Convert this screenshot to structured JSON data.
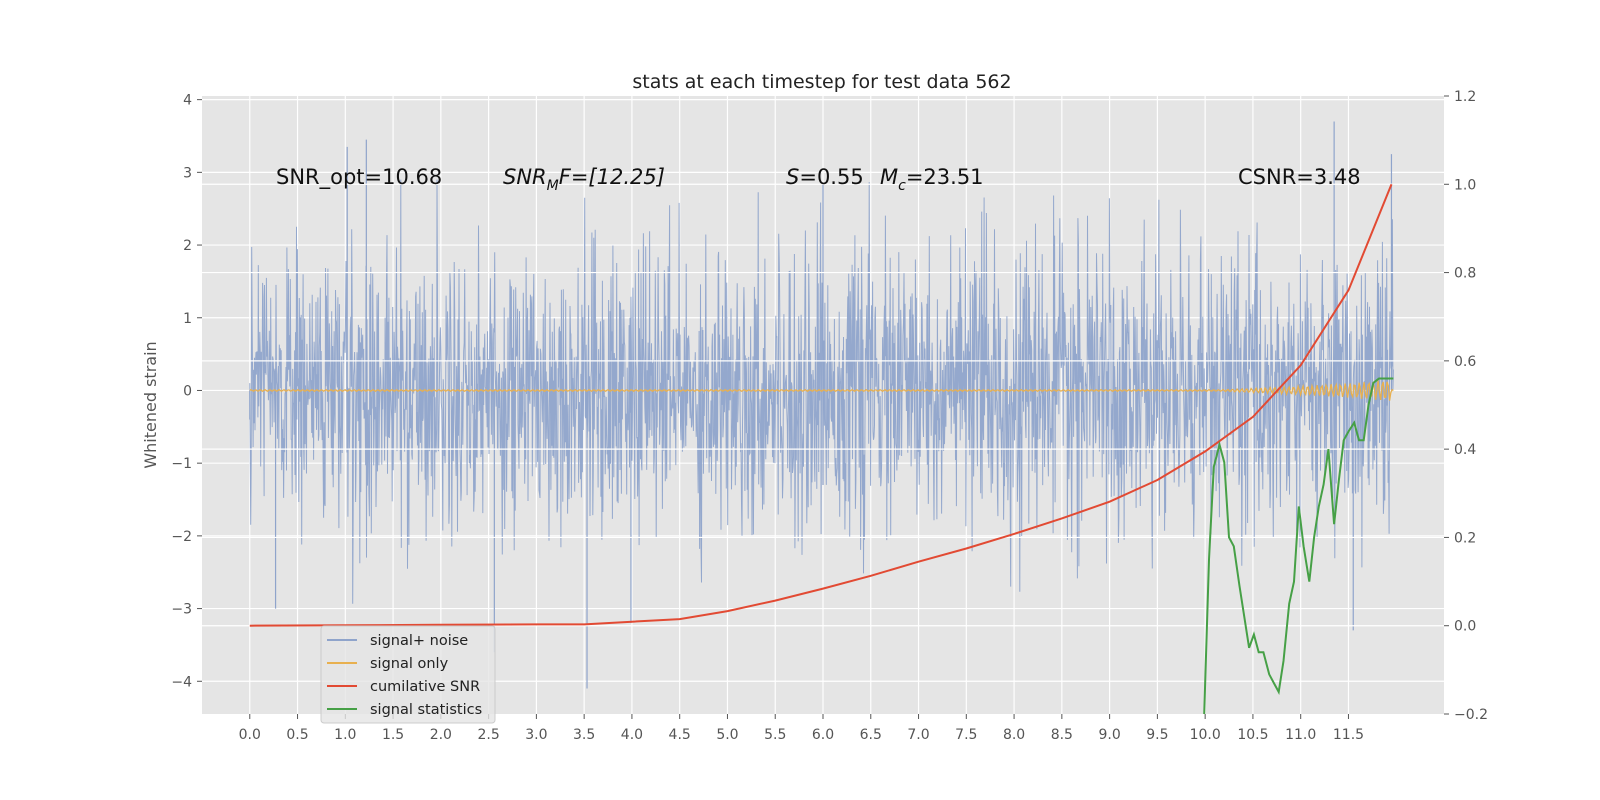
{
  "chart_data": {
    "type": "line",
    "title": "stats at each timestep for test data 562",
    "ylabel": "Whitened strain",
    "ylabel_right": "",
    "xlim": [
      -0.5,
      12.5
    ],
    "ylim": [
      -4.45,
      4.05
    ],
    "ylim_right": [
      -0.2,
      1.2
    ],
    "x_ticks": [
      0,
      0.5,
      1,
      1.5,
      2,
      2.5,
      3,
      3.5,
      4,
      4.5,
      5,
      5.5,
      6,
      6.5,
      7,
      7.5,
      8,
      8.5,
      9,
      9.5,
      10,
      10.5,
      11,
      11.5
    ],
    "x_tick_labels": [
      "0.0",
      "0.5",
      "1.0",
      "1.5",
      "2.0",
      "2.5",
      "3.0",
      "3.5",
      "4.0",
      "4.5",
      "5.0",
      "5.5",
      "6.0",
      "6.5",
      "7.0",
      "7.5",
      "8.0",
      "8.5",
      "9.0",
      "9.5",
      "10.0",
      "10.5",
      "11.0",
      "11.5"
    ],
    "y_ticks": [
      -4,
      -3,
      -2,
      -1,
      0,
      1,
      2,
      3,
      4
    ],
    "y_tick_labels": [
      "−4",
      "−3",
      "−2",
      "−1",
      "0",
      "1",
      "2",
      "3",
      "4"
    ],
    "y_ticks_right": [
      -0.2,
      0,
      0.2,
      0.4,
      0.6,
      0.8,
      1.0,
      1.2
    ],
    "y_tick_labels_right": [
      "−0.2",
      "0.0",
      "0.2",
      "0.4",
      "0.6",
      "0.8",
      "1.0",
      "1.2"
    ],
    "grid": true,
    "legend_position": "lower-left",
    "annotations": {
      "snr_opt": "SNR_opt=10.68",
      "snr_mf_main": "SNR",
      "snr_mf_sub": "M",
      "snr_mf_rest": "F=[12.25]",
      "s_label": "S",
      "s_value": "=0.55",
      "mc_label": "M",
      "mc_sub": "c",
      "mc_value": "=23.51",
      "csnr": "CSNR=3.48"
    },
    "series": [
      {
        "name": "signal+ noise",
        "color": "#8fa4cb",
        "axis": "left",
        "description_range": "noise approx ±2 with peaks to 3.7 and -4.1",
        "x": [
          0.0,
          0.27,
          1.02,
          1.22,
          2.56,
          3.53,
          3.99,
          6.0,
          6.0,
          11.35,
          11.55,
          11.95
        ],
        "y": [
          -0.4,
          -3.0,
          3.35,
          3.45,
          -3.6,
          -4.1,
          -3.2,
          2.85,
          -1.3,
          3.7,
          -3.3,
          3.25
        ]
      },
      {
        "name": "signal only",
        "color": "#e8b04f",
        "axis": "left",
        "x": [
          0,
          8,
          9,
          10,
          10.5,
          11,
          11.5,
          11.95
        ],
        "y": [
          0,
          0,
          0,
          0,
          0.03,
          0.06,
          0.1,
          0.15
        ]
      },
      {
        "name": "cumilative SNR",
        "color": "#e24a33",
        "axis": "right",
        "x": [
          0,
          1,
          2,
          3,
          3.5,
          4,
          4.5,
          5,
          5.5,
          6,
          6.5,
          7,
          7.5,
          8,
          8.5,
          9,
          9.5,
          10,
          10.5,
          11,
          11.5,
          11.95
        ],
        "y": [
          0.0,
          0.001,
          0.002,
          0.003,
          0.003,
          0.009,
          0.015,
          0.033,
          0.057,
          0.084,
          0.113,
          0.145,
          0.175,
          0.208,
          0.243,
          0.281,
          0.33,
          0.395,
          0.473,
          0.59,
          0.76,
          1.0
        ]
      },
      {
        "name": "signal statistics",
        "color": "#46a046",
        "axis": "right",
        "x": [
          9.99,
          10.04,
          10.09,
          10.15,
          10.2,
          10.25,
          10.3,
          10.36,
          10.41,
          10.46,
          10.51,
          10.56,
          10.61,
          10.67,
          10.72,
          10.77,
          10.82,
          10.88,
          10.93,
          10.98,
          11.03,
          11.09,
          11.14,
          11.19,
          11.24,
          11.29,
          11.35,
          11.4,
          11.45,
          11.5,
          11.56,
          11.61,
          11.66,
          11.71,
          11.76,
          11.82,
          11.87,
          11.92,
          11.97
        ],
        "y": [
          -0.23,
          0.15,
          0.36,
          0.41,
          0.37,
          0.2,
          0.18,
          0.09,
          0.02,
          -0.05,
          -0.02,
          -0.06,
          -0.06,
          -0.11,
          -0.13,
          -0.15,
          -0.08,
          0.05,
          0.1,
          0.27,
          0.18,
          0.1,
          0.2,
          0.27,
          0.32,
          0.4,
          0.23,
          0.33,
          0.42,
          0.44,
          0.46,
          0.42,
          0.42,
          0.5,
          0.55,
          0.56,
          0.56,
          0.56,
          0.56
        ]
      }
    ],
    "legend_entries": [
      "signal+ noise",
      "signal only",
      "cumilative SNR",
      "signal statistics"
    ]
  }
}
